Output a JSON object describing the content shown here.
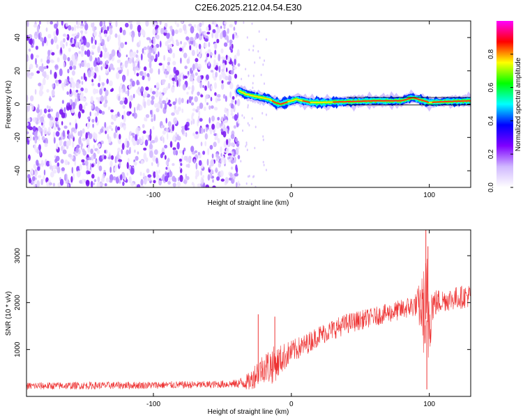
{
  "figure_title": "C2E6.2025.212.04.54.E30",
  "chart_data": [
    {
      "type": "heatmap",
      "title": "",
      "xlabel": "Height of straight line (km)",
      "ylabel": "Frequency (Hz)",
      "xlim": [
        -192,
        130
      ],
      "ylim": [
        -50,
        50
      ],
      "x_ticks": [
        -100,
        0,
        100
      ],
      "x_tick_labels": [
        "-100",
        "0",
        "100"
      ],
      "y_ticks": [
        -40,
        -20,
        0,
        20,
        40
      ],
      "y_tick_labels": [
        "-40",
        "-20",
        "0",
        "20",
        "40"
      ],
      "noise_region_x": [
        -192,
        -38
      ],
      "signal_start_x": -38,
      "signal_track": {
        "x": [
          -38,
          -33,
          -28,
          -22,
          -16,
          -12,
          -8,
          -4,
          0,
          4,
          8,
          14,
          20,
          40,
          60,
          80,
          84,
          88,
          92,
          96,
          100,
          110,
          130
        ],
        "freq": [
          8,
          6,
          5,
          4,
          3,
          1,
          0,
          1,
          2,
          3,
          2,
          1,
          1,
          1.5,
          2,
          2,
          3,
          4,
          3,
          2,
          1,
          1.5,
          2
        ]
      },
      "colorbar": {
        "label": "Normalized spectral amplitude",
        "range": [
          0,
          1
        ],
        "ticks": [
          0.0,
          0.2,
          0.4,
          0.6,
          0.8
        ],
        "tick_labels": [
          "0.0",
          "0.2",
          "0.4",
          "0.6",
          "0.8"
        ],
        "colormap": [
          "#ffffff",
          "#d0b8ff",
          "#7f00ff",
          "#0000ff",
          "#00ffff",
          "#00ff00",
          "#ffff00",
          "#ff0000",
          "#ff00ff"
        ]
      },
      "grid": false
    },
    {
      "type": "line",
      "title": "",
      "xlabel": "Height of straight line (km)",
      "ylabel": "SNR (10 * v/v)",
      "xlim": [
        -192,
        130
      ],
      "ylim": [
        0,
        3550
      ],
      "x_ticks": [
        -100,
        0,
        100
      ],
      "x_tick_labels": [
        "-100",
        "0",
        "100"
      ],
      "y_ticks": [
        1000,
        2000,
        3000
      ],
      "y_tick_labels": [
        "1000",
        "2000",
        "3000"
      ],
      "series": [
        {
          "color": "#ee3333",
          "x": [
            -192,
            -150,
            -100,
            -60,
            -40,
            -30,
            -25,
            -20,
            -15,
            -10,
            -5,
            0,
            10,
            20,
            40,
            60,
            80,
            90,
            95,
            98,
            100,
            102,
            105,
            110,
            120,
            130
          ],
          "baseline": [
            220,
            230,
            240,
            250,
            270,
            320,
            500,
            620,
            650,
            720,
            850,
            950,
            1100,
            1300,
            1550,
            1700,
            1850,
            1950,
            1900,
            1600,
            1800,
            1950,
            2000,
            2050,
            2100,
            2150
          ],
          "spread": [
            80,
            80,
            80,
            80,
            90,
            200,
            300,
            320,
            420,
            350,
            300,
            250,
            230,
            220,
            220,
            200,
            220,
            250,
            700,
            1600,
            1200,
            400,
            300,
            250,
            250,
            250
          ]
        }
      ],
      "grid": false
    }
  ]
}
